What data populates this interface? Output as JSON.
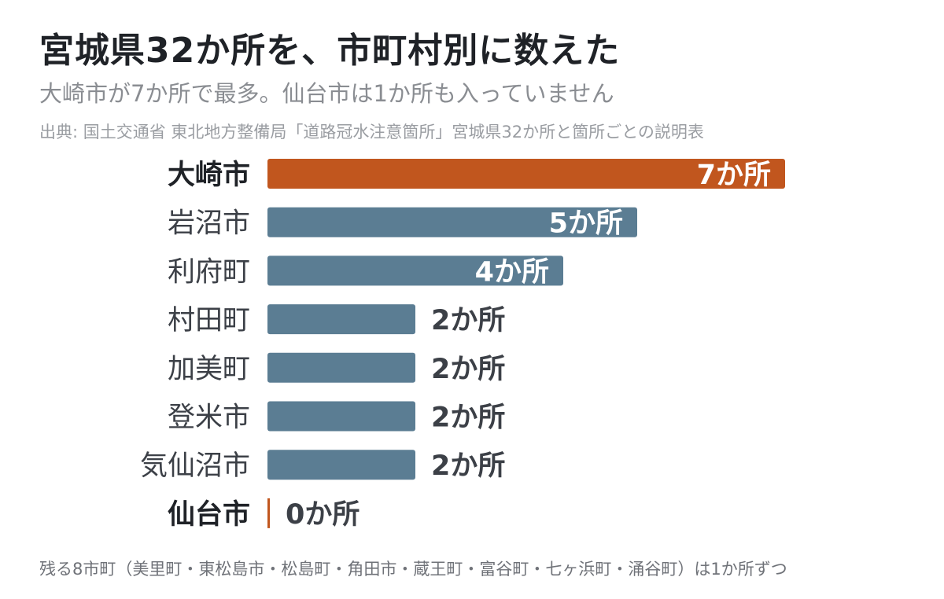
{
  "title": "宮城県32か所を、市町村別に数えた",
  "subtitle": "大崎市が7か所で最多。仙台市は1か所も入っていません",
  "source": "出典: 国土交通省 東北地方整備局「道路冠水注意箇所」宮城県32か所と箇所ごとの説明表",
  "note": "残る8市町（美里町・東松島市・松島町・角田市・蔵王町・富谷町・七ヶ浜町・涌谷町）は1か所ずつ",
  "colors": {
    "highlight": "#c1561e",
    "default": "#5b7d93",
    "text_dark": "#1f2227",
    "text_mid": "#3c4047"
  },
  "chart_data": {
    "type": "bar",
    "orientation": "horizontal",
    "categories": [
      "大崎市",
      "岩沼市",
      "利府町",
      "村田町",
      "加美町",
      "登米市",
      "気仙沼市",
      "仙台市"
    ],
    "values": [
      7,
      5,
      4,
      2,
      2,
      2,
      2,
      0
    ],
    "value_labels": [
      "7か所",
      "5か所",
      "4か所",
      "2か所",
      "2か所",
      "2か所",
      "2か所",
      "0か所"
    ],
    "highlighted": [
      "大崎市",
      "仙台市"
    ],
    "xlim": [
      0,
      7
    ]
  }
}
